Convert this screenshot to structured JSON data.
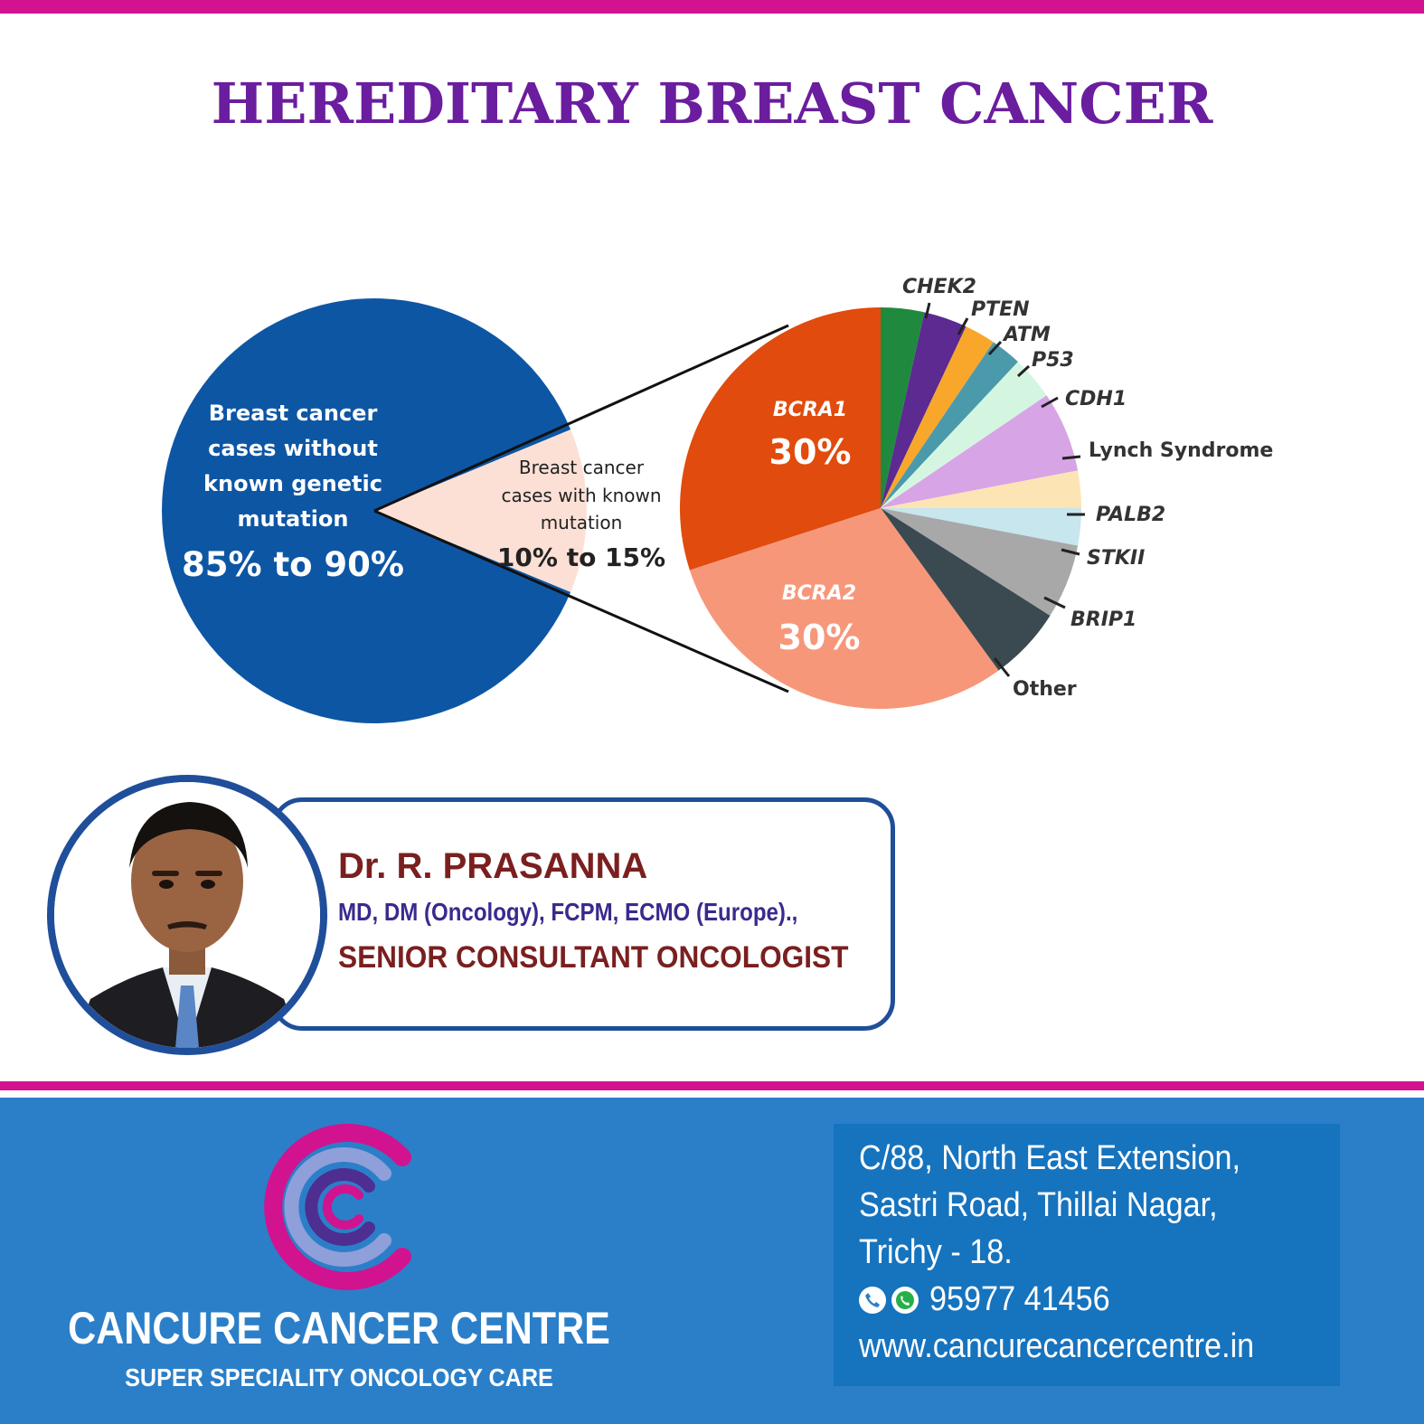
{
  "title": "HEREDITARY BREAST CANCER",
  "colors": {
    "accent_bar": "#d1138f",
    "title": "#6a1d9e",
    "footer": "#2b7fc8"
  },
  "chart_data": [
    {
      "type": "pie",
      "title": "",
      "slices": [
        {
          "label": "Breast cancer cases without known genetic mutation",
          "value_text": "85% to 90%",
          "value": 87.5,
          "color": "#0d56a4"
        },
        {
          "label": "Breast cancer cases with known mutation",
          "value_text": "10% to 15%",
          "value": 12.5,
          "color": "#fde0d5"
        }
      ]
    },
    {
      "type": "pie",
      "title": "",
      "slices": [
        {
          "label": "BCRA1",
          "value": 30,
          "value_text": "30%",
          "color": "#e14b0d"
        },
        {
          "label": "CHEK2",
          "value": 3.5,
          "color": "#1f8a3e"
        },
        {
          "label": "PTEN",
          "value": 3.5,
          "color": "#5c2a91"
        },
        {
          "label": "ATM",
          "value": 2.5,
          "color": "#f9a72b"
        },
        {
          "label": "P53",
          "value": 2.5,
          "color": "#4a9aac"
        },
        {
          "label": "CDH1",
          "value": 3.5,
          "color": "#d4f6e1"
        },
        {
          "label": "Lynch Syndrome",
          "value": 6.5,
          "color": "#d7a4e6"
        },
        {
          "label": "PALB2",
          "value": 3.0,
          "color": "#fde4b4"
        },
        {
          "label": "STKII",
          "value": 3.0,
          "color": "#c7e6ee"
        },
        {
          "label": "BRIP1",
          "value": 6.0,
          "color": "#a8a8a8"
        },
        {
          "label": "Other",
          "value": 6.0,
          "color": "#3b4a50"
        },
        {
          "label": "BCRA2",
          "value": 30,
          "value_text": "30%",
          "color": "#f7977a"
        }
      ]
    }
  ],
  "left_pie_text": {
    "line1": "Breast cancer",
    "line2": "cases without",
    "line3": "known genetic",
    "line4": "mutation",
    "value": "85% to 90%"
  },
  "wedge_text": {
    "line1": "Breast cancer",
    "line2": "cases with known",
    "line3": "mutation",
    "value": "10% to 15%"
  },
  "doctor": {
    "name": "Dr. R. PRASANNA",
    "qualifications": "MD, DM (Oncology), FCPM, ECMO (Europe).,",
    "role": "SENIOR CONSULTANT ONCOLOGIST"
  },
  "centre": {
    "name": "CANCURE CANCER CENTRE",
    "tagline": "SUPER SPECIALITY ONCOLOGY CARE"
  },
  "address": {
    "line1": "C/88, North East Extension,",
    "line2": "Sastri Road, Thillai Nagar,",
    "line3": "Trichy - 18.",
    "phone": "95977 41456",
    "website": "www.cancurecancercentre.in"
  }
}
